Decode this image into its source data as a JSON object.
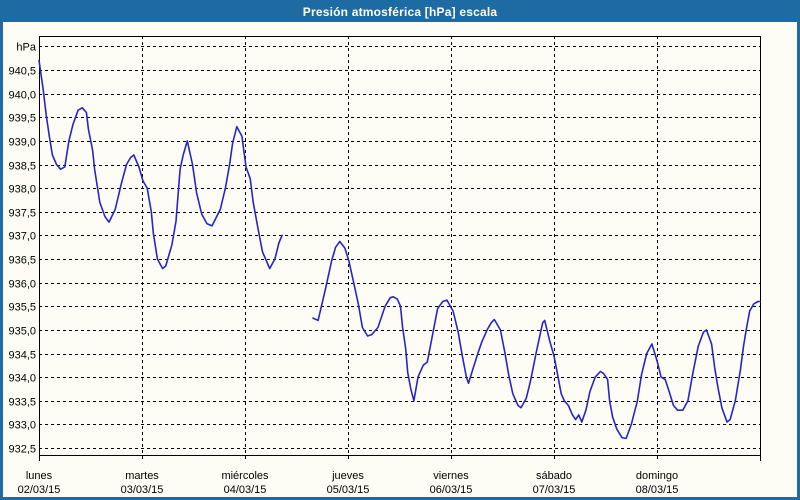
{
  "window": {
    "title": "Presión atmosférica [hPa] escala",
    "title_bar_color": "#1e6ba4",
    "border_color": "#1e6ba4",
    "background": "#fdfdf6"
  },
  "chart_data": {
    "type": "line",
    "title": "Presión atmosférica [hPa] escala",
    "grid": "dashed",
    "legend": "none",
    "frame_color": "#000000",
    "grid_color": "#000000",
    "plot_background": "#fdfdf6",
    "y_axis": {
      "unit_label": "hPa",
      "tick_min": 932.5,
      "tick_max": 940.5,
      "tick_step": 0.5,
      "extra_top_gridline": 941.0,
      "decimal_separator": ",",
      "tick_labels": [
        "940,5",
        "940,0",
        "939,5",
        "939,0",
        "938,5",
        "938,0",
        "937,5",
        "937,0",
        "936,5",
        "936,0",
        "935,5",
        "935,0",
        "934,5",
        "934,0",
        "933,5",
        "933,0",
        "932,5"
      ]
    },
    "x_axis": {
      "unit": "days",
      "range_days": [
        0,
        7
      ],
      "tick_labels": [
        {
          "day": "lunes",
          "date": "02/03/15"
        },
        {
          "day": "martes",
          "date": "03/03/15"
        },
        {
          "day": "miércoles",
          "date": "04/03/15"
        },
        {
          "day": "jueves",
          "date": "05/03/15"
        },
        {
          "day": "viernes",
          "date": "06/03/15"
        },
        {
          "day": "sábado",
          "date": "07/03/15"
        },
        {
          "day": "domingo",
          "date": "08/03/15"
        }
      ]
    },
    "series": [
      {
        "name": "Presión atmosférica",
        "unit": "hPa",
        "color": "#2626c6",
        "segments": [
          [
            [
              0,
              940.7
            ],
            [
              0.04,
              940.1
            ],
            [
              0.07,
              939.55
            ],
            [
              0.1,
              939.1
            ],
            [
              0.13,
              938.7
            ],
            [
              0.17,
              938.5
            ],
            [
              0.21,
              938.4
            ],
            [
              0.25,
              938.45
            ],
            [
              0.29,
              939.0
            ],
            [
              0.33,
              939.35
            ],
            [
              0.38,
              939.65
            ],
            [
              0.42,
              939.7
            ],
            [
              0.46,
              939.6
            ],
            [
              0.48,
              939.25
            ],
            [
              0.52,
              938.8
            ],
            [
              0.54,
              938.4
            ],
            [
              0.59,
              937.7
            ],
            [
              0.64,
              937.4
            ],
            [
              0.68,
              937.28
            ],
            [
              0.74,
              937.55
            ],
            [
              0.8,
              938.1
            ],
            [
              0.85,
              938.5
            ],
            [
              0.89,
              938.65
            ],
            [
              0.92,
              938.7
            ],
            [
              0.97,
              938.45
            ],
            [
              1.01,
              938.15
            ],
            [
              1.05,
              938.0
            ],
            [
              1.09,
              937.5
            ],
            [
              1.11,
              937.05
            ],
            [
              1.15,
              936.5
            ],
            [
              1.18,
              936.38
            ],
            [
              1.2,
              936.3
            ],
            [
              1.23,
              936.35
            ],
            [
              1.29,
              936.8
            ],
            [
              1.33,
              937.3
            ],
            [
              1.37,
              938.4
            ],
            [
              1.4,
              938.7
            ],
            [
              1.44,
              939.0
            ],
            [
              1.49,
              938.5
            ],
            [
              1.53,
              937.9
            ],
            [
              1.58,
              937.45
            ],
            [
              1.63,
              937.25
            ],
            [
              1.68,
              937.2
            ],
            [
              1.76,
              937.55
            ],
            [
              1.81,
              938.0
            ],
            [
              1.85,
              938.5
            ],
            [
              1.88,
              938.95
            ],
            [
              1.92,
              939.3
            ],
            [
              1.97,
              939.1
            ],
            [
              2.01,
              938.45
            ],
            [
              2.05,
              938.2
            ],
            [
              2.08,
              937.7
            ],
            [
              2.13,
              937.1
            ],
            [
              2.17,
              936.65
            ],
            [
              2.24,
              936.3
            ],
            [
              2.29,
              936.5
            ],
            [
              2.33,
              936.85
            ],
            [
              2.36,
              937.0
            ]
          ],
          [
            [
              2.66,
              935.25
            ],
            [
              2.71,
              935.2
            ],
            [
              2.78,
              935.85
            ],
            [
              2.84,
              936.45
            ],
            [
              2.88,
              936.75
            ],
            [
              2.92,
              936.87
            ],
            [
              2.97,
              936.73
            ],
            [
              3.01,
              936.45
            ],
            [
              3.06,
              935.95
            ],
            [
              3.1,
              935.55
            ],
            [
              3.14,
              935.05
            ],
            [
              3.19,
              934.87
            ],
            [
              3.23,
              934.9
            ],
            [
              3.29,
              935.05
            ],
            [
              3.36,
              935.5
            ],
            [
              3.41,
              935.68
            ],
            [
              3.44,
              935.7
            ],
            [
              3.48,
              935.65
            ],
            [
              3.51,
              935.5
            ],
            [
              3.53,
              935.05
            ],
            [
              3.56,
              934.6
            ],
            [
              3.58,
              934.1
            ],
            [
              3.61,
              933.75
            ],
            [
              3.64,
              933.5
            ],
            [
              3.68,
              934.0
            ],
            [
              3.73,
              934.25
            ],
            [
              3.77,
              934.32
            ],
            [
              3.83,
              935.0
            ],
            [
              3.87,
              935.45
            ],
            [
              3.92,
              935.6
            ],
            [
              3.96,
              935.63
            ],
            [
              4.02,
              935.4
            ],
            [
              4.07,
              934.95
            ],
            [
              4.11,
              934.45
            ],
            [
              4.15,
              934.0
            ],
            [
              4.17,
              933.87
            ],
            [
              4.21,
              934.15
            ],
            [
              4.26,
              934.5
            ],
            [
              4.3,
              934.75
            ],
            [
              4.35,
              935.0
            ],
            [
              4.39,
              935.15
            ],
            [
              4.42,
              935.22
            ],
            [
              4.48,
              935.0
            ],
            [
              4.52,
              934.55
            ],
            [
              4.56,
              934.05
            ],
            [
              4.6,
              933.65
            ],
            [
              4.65,
              933.4
            ],
            [
              4.68,
              933.35
            ],
            [
              4.73,
              933.55
            ],
            [
              4.77,
              933.9
            ],
            [
              4.83,
              934.55
            ],
            [
              4.87,
              934.95
            ],
            [
              4.89,
              935.15
            ],
            [
              4.91,
              935.2
            ],
            [
              4.96,
              934.75
            ],
            [
              5.0,
              934.45
            ],
            [
              5.04,
              934.0
            ],
            [
              5.07,
              933.65
            ],
            [
              5.1,
              933.5
            ],
            [
              5.14,
              933.4
            ],
            [
              5.18,
              933.2
            ],
            [
              5.21,
              933.1
            ],
            [
              5.24,
              933.2
            ],
            [
              5.27,
              933.05
            ],
            [
              5.31,
              933.3
            ],
            [
              5.35,
              933.7
            ],
            [
              5.4,
              934.0
            ],
            [
              5.45,
              934.12
            ],
            [
              5.48,
              934.08
            ],
            [
              5.52,
              933.95
            ],
            [
              5.54,
              933.5
            ],
            [
              5.57,
              933.15
            ],
            [
              5.61,
              932.9
            ],
            [
              5.66,
              932.72
            ],
            [
              5.7,
              932.7
            ],
            [
              5.75,
              933.0
            ],
            [
              5.81,
              933.5
            ],
            [
              5.85,
              934.05
            ],
            [
              5.9,
              934.5
            ],
            [
              5.95,
              934.7
            ],
            [
              6.0,
              934.35
            ],
            [
              6.04,
              934.0
            ],
            [
              6.08,
              933.95
            ],
            [
              6.11,
              933.75
            ],
            [
              6.16,
              933.4
            ],
            [
              6.2,
              933.3
            ],
            [
              6.25,
              933.3
            ],
            [
              6.3,
              933.5
            ],
            [
              6.35,
              934.1
            ],
            [
              6.4,
              934.65
            ],
            [
              6.45,
              934.95
            ],
            [
              6.48,
              935.0
            ],
            [
              6.53,
              934.7
            ],
            [
              6.56,
              934.2
            ],
            [
              6.59,
              933.8
            ],
            [
              6.63,
              933.35
            ],
            [
              6.68,
              933.05
            ],
            [
              6.71,
              933.1
            ],
            [
              6.76,
              933.5
            ],
            [
              6.81,
              934.15
            ],
            [
              6.84,
              934.65
            ],
            [
              6.87,
              935.05
            ],
            [
              6.9,
              935.4
            ],
            [
              6.94,
              935.55
            ],
            [
              6.98,
              935.6
            ],
            [
              7.0,
              935.6
            ]
          ]
        ]
      }
    ]
  }
}
